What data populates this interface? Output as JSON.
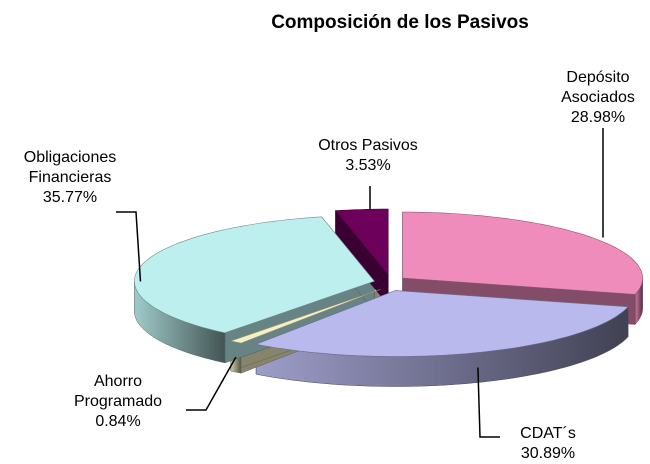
{
  "chart_data": {
    "type": "pie",
    "title": "Composición de los Pasivos",
    "categories": [
      "Depósito Asociados",
      "CDAT´s",
      "Ahorro Programado",
      "Obligaciones Financieras",
      "Otros Pasivos"
    ],
    "values": [
      28.98,
      30.89,
      0.84,
      35.77,
      3.53
    ],
    "value_labels": [
      "28.98%",
      "30.89%",
      "0.84%",
      "35.77%",
      "3.53%"
    ],
    "colors": [
      "#f08cbc",
      "#b9b9ee",
      "#f4f0c2",
      "#bcefee",
      "#6c005a"
    ]
  }
}
